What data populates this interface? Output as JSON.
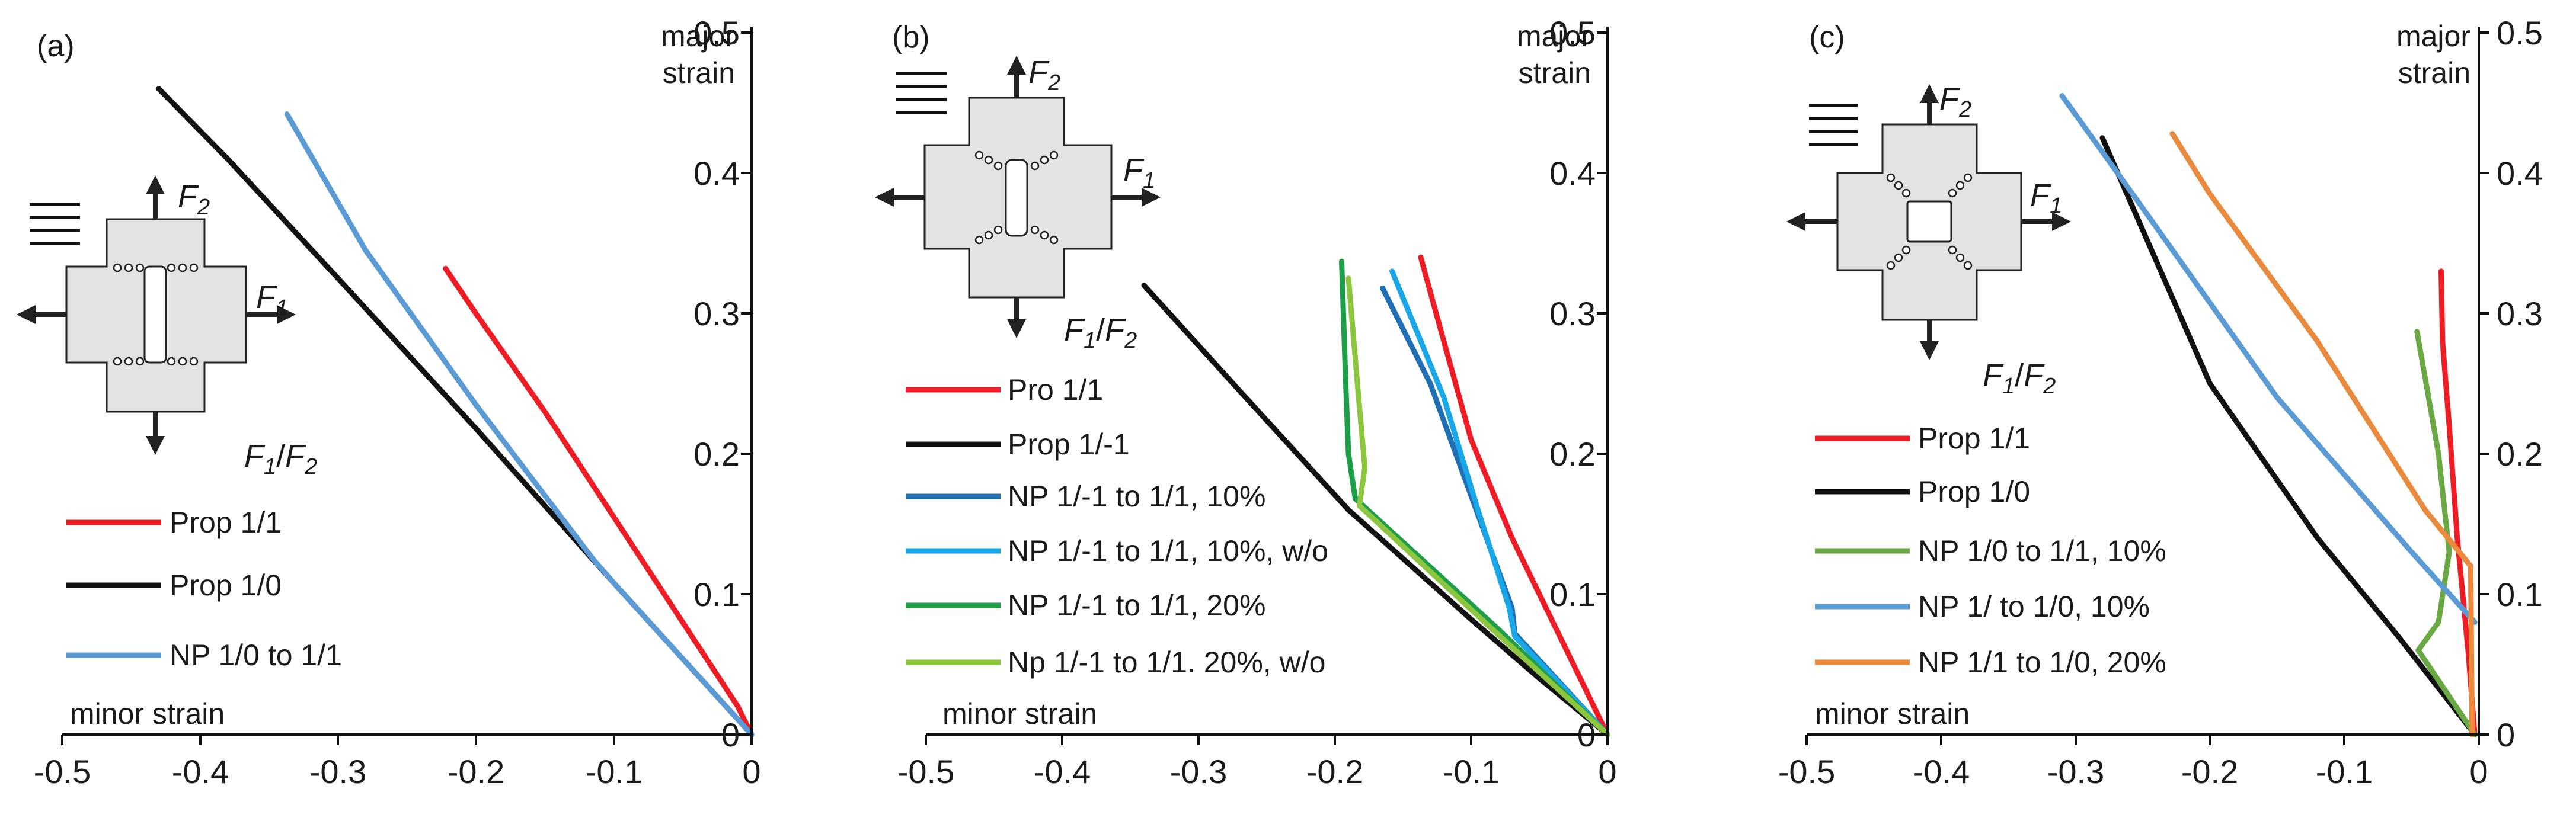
{
  "colors": {
    "red": "#ee1c24",
    "black": "#111111",
    "medium_blue": "#5b9bd5",
    "dark_blue": "#1f6fb4",
    "sky_blue": "#1aa7e8",
    "dark_green": "#1f9e49",
    "light_green": "#8cc63f",
    "olive_green": "#6aa843",
    "orange": "#e98a3c",
    "specimen_fill": "#e3e3e3"
  },
  "chart_data": [
    {
      "type": "line",
      "panel_label": "(a)",
      "ratio_label": {
        "f1": "F",
        "s1": "1",
        "sep": "/",
        "f2": "F",
        "s2": "2"
      },
      "force_labels": {
        "f2": "F",
        "f2_sub": "2",
        "f1": "F",
        "f1_sub": "1"
      },
      "xlabel": "minor strain",
      "ylabel": [
        "major",
        "strain"
      ],
      "xlim": [
        -0.5,
        0
      ],
      "ylim": [
        0,
        0.5
      ],
      "xticks": [
        "-0.5",
        "-0.4",
        "-0.3",
        "-0.2",
        "-0.1",
        "0"
      ],
      "yticks": [
        "0",
        "0.1",
        "0.2",
        "0.3",
        "0.4",
        "0.5"
      ],
      "legend": [
        "Prop 1/1",
        "Prop 1/0",
        "NP 1/0 to 1/1"
      ],
      "series": [
        {
          "name": "Prop 1/1",
          "color": "red",
          "points": [
            [
              0,
              0
            ],
            [
              -0.01,
              0.02
            ],
            [
              -0.05,
              0.08
            ],
            [
              -0.1,
              0.155
            ],
            [
              -0.15,
              0.23
            ],
            [
              -0.2,
              0.3
            ],
            [
              -0.222,
              0.332
            ]
          ]
        },
        {
          "name": "Prop 1/0",
          "color": "black",
          "points": [
            [
              0,
              0
            ],
            [
              -0.1,
              0.108
            ],
            [
              -0.2,
              0.218
            ],
            [
              -0.3,
              0.325
            ],
            [
              -0.38,
              0.41
            ],
            [
              -0.43,
              0.46
            ]
          ]
        },
        {
          "name": "NP 1/0 to 1/1",
          "color": "medium_blue",
          "points": [
            [
              0,
              0
            ],
            [
              -0.1,
              0.108
            ],
            [
              -0.115,
              0.125
            ],
            [
              -0.2,
              0.235
            ],
            [
              -0.28,
              0.345
            ],
            [
              -0.337,
              0.442
            ]
          ]
        }
      ]
    },
    {
      "type": "line",
      "panel_label": "(b)",
      "ratio_label": {
        "f1": "F",
        "s1": "1",
        "sep": "/",
        "f2": "F",
        "s2": "2"
      },
      "force_labels": {
        "f2": "F",
        "f2_sub": "2",
        "f1": "F",
        "f1_sub": "1"
      },
      "xlabel": "minor strain",
      "ylabel": [
        "major",
        "strain"
      ],
      "xlim": [
        -0.5,
        0
      ],
      "ylim": [
        0,
        0.5
      ],
      "xticks": [
        "-0.5",
        "-0.4",
        "-0.3",
        "-0.2",
        "-0.1",
        "0"
      ],
      "yticks": [
        "0",
        "0.1",
        "0.2",
        "0.3",
        "0.4",
        "0.5"
      ],
      "legend": [
        "Pro 1/1",
        "Prop 1/-1",
        "NP 1/-1 to 1/1, 10%",
        "NP 1/-1 to 1/1, 10%, w/o",
        "NP 1/-1 to 1/1, 20%",
        "Np 1/-1 to 1/1. 20%, w/o"
      ],
      "series": [
        {
          "name": "Pro 1/1",
          "color": "red",
          "points": [
            [
              0,
              0
            ],
            [
              -0.01,
              0.02
            ],
            [
              -0.03,
              0.06
            ],
            [
              -0.07,
              0.14
            ],
            [
              -0.1,
              0.21
            ],
            [
              -0.12,
              0.28
            ],
            [
              -0.137,
              0.34
            ]
          ]
        },
        {
          "name": "Prop 1/-1",
          "color": "black",
          "points": [
            [
              0,
              0
            ],
            [
              -0.05,
              0.04
            ],
            [
              -0.1,
              0.082
            ],
            [
              -0.19,
              0.16
            ],
            [
              -0.27,
              0.245
            ],
            [
              -0.34,
              0.32
            ]
          ]
        },
        {
          "name": "NP 1/-1 to 1/1, 10%",
          "color": "dark_blue",
          "points": [
            [
              0,
              0
            ],
            [
              -0.068,
              0.072
            ],
            [
              -0.07,
              0.09
            ],
            [
              -0.1,
              0.17
            ],
            [
              -0.13,
              0.25
            ],
            [
              -0.165,
              0.318
            ]
          ]
        },
        {
          "name": "NP 1/-1 to 1/1, 10%, w/o",
          "color": "sky_blue",
          "points": [
            [
              0,
              0
            ],
            [
              -0.068,
              0.07
            ],
            [
              -0.072,
              0.09
            ],
            [
              -0.095,
              0.16
            ],
            [
              -0.12,
              0.24
            ],
            [
              -0.158,
              0.33
            ]
          ]
        },
        {
          "name": "NP 1/-1 to 1/1, 20%",
          "color": "dark_green",
          "points": [
            [
              0,
              0
            ],
            [
              -0.08,
              0.075
            ],
            [
              -0.185,
              0.168
            ],
            [
              -0.19,
              0.2
            ],
            [
              -0.192,
              0.25
            ],
            [
              -0.195,
              0.337
            ]
          ]
        },
        {
          "name": "Np 1/-1 to 1/1. 20%, w/o",
          "color": "light_green",
          "points": [
            [
              0,
              0
            ],
            [
              -0.09,
              0.08
            ],
            [
              -0.182,
              0.163
            ],
            [
              -0.178,
              0.19
            ],
            [
              -0.183,
              0.245
            ],
            [
              -0.19,
              0.325
            ]
          ]
        }
      ]
    },
    {
      "type": "line",
      "panel_label": "(c)",
      "ratio_label": {
        "f1": "F",
        "s1": "1",
        "sep": "/",
        "f2": "F",
        "s2": "2"
      },
      "force_labels": {
        "f2": "F",
        "f2_sub": "2",
        "f1": "F",
        "f1_sub": "1"
      },
      "xlabel": "minor strain",
      "ylabel": [
        "major",
        "strain"
      ],
      "xlim": [
        -0.5,
        0
      ],
      "ylim": [
        0,
        0.5
      ],
      "xticks": [
        "-0.5",
        "-0.4",
        "-0.3",
        "-0.2",
        "-0.1",
        "0"
      ],
      "yticks": [
        "0",
        "0.1",
        "0.2",
        "0.3",
        "0.4",
        "0.5"
      ],
      "legend": [
        "Prop 1/1",
        "Prop 1/0",
        "NP 1/0 to 1/1, 10%",
        "NP 1/ to 1/0, 10%",
        "NP 1/1 to 1/0, 20%"
      ],
      "series": [
        {
          "name": "Prop 1/1",
          "color": "red",
          "points": [
            [
              -0.003,
              0
            ],
            [
              -0.008,
              0.06
            ],
            [
              -0.016,
              0.14
            ],
            [
              -0.022,
              0.22
            ],
            [
              -0.027,
              0.28
            ],
            [
              -0.028,
              0.33
            ]
          ]
        },
        {
          "name": "Prop 1/0",
          "color": "black",
          "points": [
            [
              -0.003,
              0
            ],
            [
              -0.06,
              0.07
            ],
            [
              -0.12,
              0.14
            ],
            [
              -0.2,
              0.25
            ],
            [
              -0.28,
              0.425
            ]
          ]
        },
        {
          "name": "NP 1/0 to 1/1, 10%",
          "color": "olive_green",
          "points": [
            [
              -0.003,
              0
            ],
            [
              -0.045,
              0.06
            ],
            [
              -0.03,
              0.08
            ],
            [
              -0.022,
              0.13
            ],
            [
              -0.03,
              0.2
            ],
            [
              -0.046,
              0.287
            ]
          ]
        },
        {
          "name": "NP 1/ to 1/0, 10%",
          "color": "medium_blue",
          "points": [
            [
              -0.003,
              0.08
            ],
            [
              -0.05,
              0.13
            ],
            [
              -0.15,
              0.24
            ],
            [
              -0.25,
              0.375
            ],
            [
              -0.31,
              0.455
            ]
          ]
        },
        {
          "name": "NP 1/1 to 1/0, 20%",
          "color": "orange",
          "points": [
            [
              -0.005,
              0
            ],
            [
              -0.006,
              0.12
            ],
            [
              -0.04,
              0.16
            ],
            [
              -0.12,
              0.28
            ],
            [
              -0.2,
              0.385
            ],
            [
              -0.228,
              0.428
            ]
          ]
        }
      ]
    }
  ]
}
